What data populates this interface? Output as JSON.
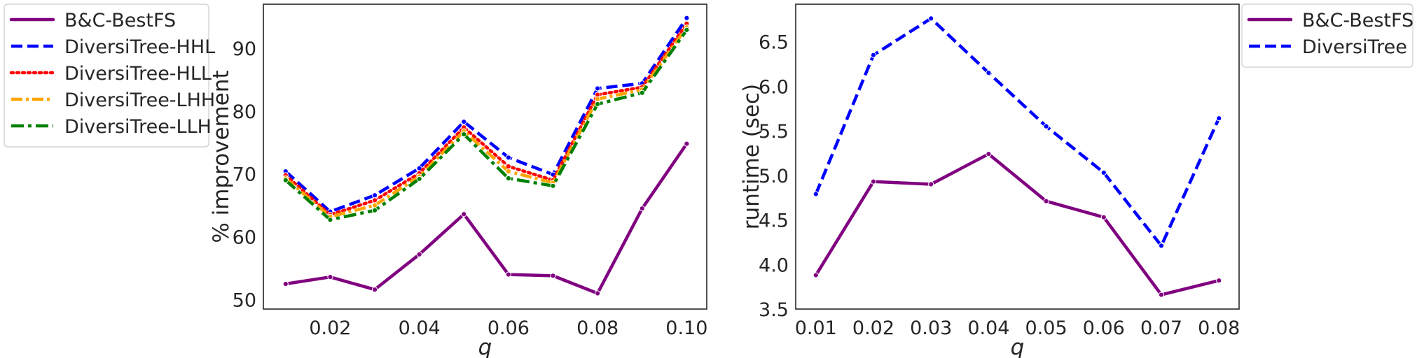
{
  "chart_data": [
    {
      "type": "line",
      "title": "",
      "xlabel": "q",
      "ylabel": "% improvement",
      "x": [
        0.01,
        0.02,
        0.03,
        0.04,
        0.05,
        0.06,
        0.07,
        0.08,
        0.09,
        0.1
      ],
      "xlim": [
        0.005,
        0.1045
      ],
      "ylim": [
        48.5,
        97
      ],
      "xticks": [
        "0.02",
        "0.04",
        "0.06",
        "0.08",
        "0.10"
      ],
      "xtick_values": [
        0.02,
        0.04,
        0.06,
        0.08,
        0.1
      ],
      "yticks": [
        "50",
        "60",
        "70",
        "80",
        "90"
      ],
      "ytick_values": [
        50,
        60,
        70,
        80,
        90
      ],
      "grid": false,
      "legend_position": "outside-left",
      "series": [
        {
          "name": "B&C-BestFS",
          "color": "#800080",
          "dash": "solid",
          "values": [
            52.5,
            53.6,
            51.6,
            57.2,
            63.6,
            54.0,
            53.8,
            51.0,
            64.5,
            74.8
          ]
        },
        {
          "name": "DiversiTree-HHL",
          "color": "#0000ff",
          "dash": "dashed",
          "values": [
            70.4,
            64.0,
            66.6,
            70.9,
            78.3,
            72.6,
            69.9,
            83.6,
            84.4,
            94.8
          ]
        },
        {
          "name": "DiversiTree-HLL",
          "color": "#ff0000",
          "dash": "dotted",
          "values": [
            69.8,
            63.5,
            65.8,
            70.1,
            77.4,
            71.2,
            69.0,
            82.6,
            83.8,
            93.9
          ]
        },
        {
          "name": "DiversiTree-LHH",
          "color": "#ffa500",
          "dash": "dashdot-fine",
          "values": [
            69.3,
            63.2,
            65.0,
            69.6,
            76.8,
            70.4,
            68.6,
            81.9,
            83.4,
            93.3
          ]
        },
        {
          "name": "DiversiTree-LLH",
          "color": "#008000",
          "dash": "dashdot",
          "values": [
            69.0,
            62.7,
            64.2,
            69.2,
            76.3,
            69.3,
            68.1,
            81.1,
            82.9,
            92.9
          ]
        }
      ]
    },
    {
      "type": "line",
      "title": "",
      "xlabel": "q",
      "ylabel": "runtime (sec)",
      "x": [
        0.01,
        0.02,
        0.03,
        0.04,
        0.05,
        0.06,
        0.07,
        0.08
      ],
      "xlim": [
        0.0065,
        0.0835
      ],
      "ylim": [
        3.5,
        6.92
      ],
      "xticks": [
        "0.01",
        "0.02",
        "0.03",
        "0.04",
        "0.05",
        "0.06",
        "0.07",
        "0.08"
      ],
      "xtick_values": [
        0.01,
        0.02,
        0.03,
        0.04,
        0.05,
        0.06,
        0.07,
        0.08
      ],
      "yticks": [
        "3.5",
        "4.0",
        "4.5",
        "5.0",
        "5.5",
        "6.0",
        "6.5"
      ],
      "ytick_values": [
        3.5,
        4.0,
        4.5,
        5.0,
        5.5,
        6.0,
        6.5
      ],
      "grid": false,
      "legend_position": "outside-right",
      "series": [
        {
          "name": "B&C-BestFS",
          "color": "#800080",
          "dash": "solid",
          "values": [
            3.88,
            4.93,
            4.9,
            5.24,
            4.71,
            4.53,
            3.66,
            3.82
          ]
        },
        {
          "name": "DiversiTree",
          "color": "#0000ff",
          "dash": "dashed",
          "values": [
            4.79,
            6.35,
            6.76,
            6.15,
            5.55,
            5.03,
            4.21,
            5.64
          ]
        }
      ]
    }
  ]
}
